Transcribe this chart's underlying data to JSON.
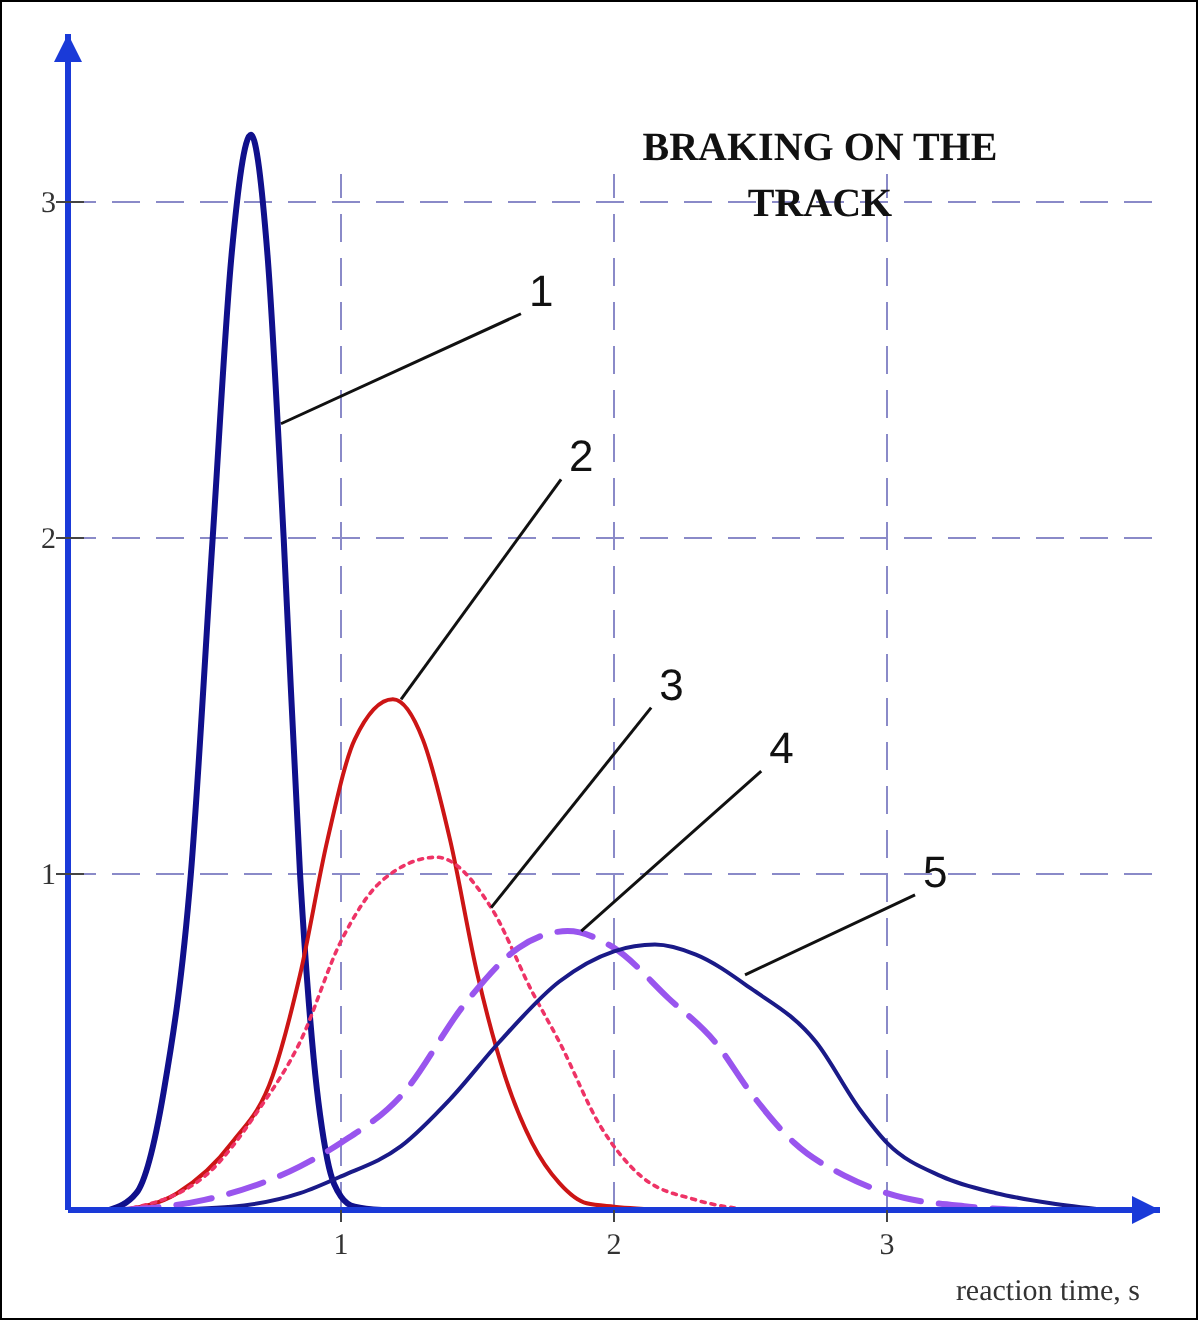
{
  "chart_data": {
    "type": "line",
    "title": "BRAKING ON THE TRACK",
    "xlabel": "reaction time, s",
    "xlim": [
      0,
      4
    ],
    "ylim": [
      0,
      3.5
    ],
    "xticks": [
      1,
      2,
      3
    ],
    "yticks": [
      1,
      2,
      3
    ],
    "grid": true,
    "series": [
      {
        "color": "#10108c",
        "line_style": "solid",
        "x": [
          0.15,
          0.25,
          0.35,
          0.45,
          0.53,
          0.6,
          0.67,
          0.73,
          0.79,
          0.85,
          0.9,
          0.95,
          1.0,
          1.05,
          1.15
        ],
        "values": [
          0,
          0.05,
          0.35,
          1.0,
          2.0,
          2.85,
          3.2,
          2.85,
          2.0,
          1.0,
          0.45,
          0.15,
          0.04,
          0.01,
          0
        ]
      },
      {
        "color": "#cc1515",
        "line_style": "solid",
        "x": [
          0.2,
          0.4,
          0.6,
          0.75,
          0.85,
          0.95,
          1.05,
          1.19,
          1.3,
          1.4,
          1.5,
          1.6,
          1.7,
          1.8,
          1.9,
          2.0,
          2.2
        ],
        "values": [
          0,
          0.05,
          0.2,
          0.4,
          0.7,
          1.1,
          1.4,
          1.52,
          1.4,
          1.1,
          0.7,
          0.4,
          0.2,
          0.08,
          0.02,
          0.01,
          0
        ]
      },
      {
        "color": "#ee3366",
        "line_style": "dotted",
        "x": [
          0.2,
          0.5,
          0.7,
          0.85,
          1.0,
          1.15,
          1.35,
          1.55,
          1.7,
          1.8,
          1.95,
          2.1,
          2.3,
          2.5
        ],
        "values": [
          0,
          0.1,
          0.3,
          0.5,
          0.8,
          0.98,
          1.05,
          0.9,
          0.65,
          0.5,
          0.25,
          0.1,
          0.03,
          0
        ]
      },
      {
        "color": "#9955ee",
        "line_style": "dashed",
        "x": [
          0.2,
          0.5,
          0.85,
          1.0,
          1.22,
          1.46,
          1.65,
          1.83,
          2.0,
          2.2,
          2.37,
          2.5,
          2.66,
          2.85,
          3.0,
          3.3,
          3.5
        ],
        "values": [
          0,
          0.03,
          0.13,
          0.2,
          0.34,
          0.62,
          0.78,
          0.83,
          0.78,
          0.63,
          0.5,
          0.35,
          0.2,
          0.1,
          0.05,
          0.01,
          0
        ]
      },
      {
        "color": "#1a1a88",
        "line_style": "solid",
        "x": [
          0.3,
          0.6,
          0.85,
          1.0,
          1.22,
          1.4,
          1.58,
          1.8,
          2.0,
          2.15,
          2.3,
          2.5,
          2.74,
          2.9,
          3.0,
          3.2,
          3.4,
          3.6,
          3.8
        ],
        "values": [
          0,
          0.01,
          0.05,
          0.1,
          0.19,
          0.33,
          0.5,
          0.68,
          0.77,
          0.79,
          0.76,
          0.66,
          0.5,
          0.3,
          0.2,
          0.1,
          0.05,
          0.02,
          0
        ]
      }
    ],
    "annotations": [
      {
        "text": "1",
        "x": 0.78,
        "y": 2.34
      },
      {
        "text": "2",
        "x": 1.22,
        "y": 1.52
      },
      {
        "text": "3",
        "x": 1.55,
        "y": 0.9
      },
      {
        "text": "4",
        "x": 1.88,
        "y": 0.83
      },
      {
        "text": "5",
        "x": 2.48,
        "y": 0.7
      }
    ]
  }
}
